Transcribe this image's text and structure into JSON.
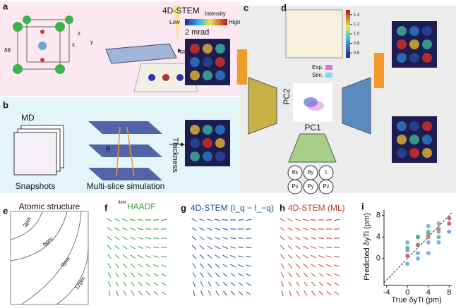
{
  "panel_a": {
    "label": "a",
    "beam": "4D-STEM",
    "angle": "2 mrad",
    "delta": "δθ",
    "axes": [
      "z",
      "x",
      "y"
    ],
    "colorbar": {
      "title": "Intensity",
      "low": "Low",
      "high": "High"
    }
  },
  "panel_b": {
    "label": "b",
    "md": "MD",
    "thickness": "Thickness",
    "theta": "θ",
    "snapshots": "Snapshots",
    "simulation": "Multi-slice simulation"
  },
  "panel_c": {
    "label": "c",
    "pc1": "PC1",
    "pc2": "PC2",
    "legend": [
      "Exp.",
      "Sim."
    ],
    "outputs": [
      "θx",
      "θy",
      "t",
      "Px",
      "Py",
      "Pz"
    ]
  },
  "panel_d": {
    "label": "d",
    "colorbar_ticks": [
      {
        "value": 1.4,
        "label": "1.4"
      },
      {
        "value": 1.2,
        "label": "1.2"
      },
      {
        "value": 1,
        "label": "1.0"
      },
      {
        "value": 0.8,
        "label": "0.8"
      },
      {
        "value": 0.6,
        "label": "0.6"
      }
    ],
    "colorbar_lim": [
      0.5,
      1.5
    ]
  },
  "panel_e": {
    "label": "e",
    "title": "Atomic structure",
    "contours": [
      "3pm",
      "6pm",
      "9pm",
      "12pm"
    ]
  },
  "panel_f": {
    "label": "f",
    "superscript": "data",
    "title": "HAADF"
  },
  "panel_g": {
    "label": "g",
    "title": "4D-STEM (I_q − I_−q)"
  },
  "panel_h": {
    "label": "h",
    "title": "4D-STEM (ML)"
  },
  "panel_i": {
    "label": "i",
    "type": "scatter",
    "x_label": "True δyTi (pm)",
    "y_label": "Predicted δyTi (pm)",
    "xlim": [
      -4.5,
      8.5
    ],
    "ylim": [
      -5,
      9
    ],
    "xticks": [
      -4,
      0,
      4,
      8
    ],
    "yticks": [
      0,
      4,
      8
    ],
    "series": [
      {
        "color": "#4a8fc8",
        "x": [
          0,
          0,
          0,
          0,
          2,
          2,
          2,
          2,
          4,
          4,
          4,
          4,
          6,
          6,
          6,
          8,
          8,
          8
        ],
        "y": [
          -1,
          0.5,
          1.5,
          3,
          0,
          1,
          2.5,
          4,
          1,
          3,
          4.5,
          6,
          3,
          5,
          6.5,
          5,
          6.5,
          7.5
        ]
      },
      {
        "color": "#d9534f",
        "x": [
          0,
          2,
          4,
          6,
          8,
          8
        ],
        "y": [
          0.5,
          2.5,
          4,
          5.5,
          6.5,
          7.5
        ]
      },
      {
        "color": "#3aa85a",
        "x": [
          0,
          2,
          4,
          6
        ],
        "y": [
          2,
          4,
          5,
          4
        ]
      }
    ]
  }
}
